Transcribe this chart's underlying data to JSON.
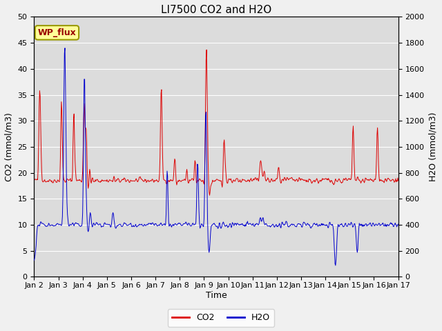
{
  "title": "LI7500 CO2 and H2O",
  "xlabel": "Time",
  "ylabel_left": "CO2 (mmol/m3)",
  "ylabel_right": "H2O (mmol/m3)",
  "ylim_left": [
    0,
    50
  ],
  "ylim_right": [
    0,
    2000
  ],
  "yticks_left": [
    0,
    5,
    10,
    15,
    20,
    25,
    30,
    35,
    40,
    45,
    50
  ],
  "yticks_right": [
    0,
    200,
    400,
    600,
    800,
    1000,
    1200,
    1400,
    1600,
    1800,
    2000
  ],
  "annotation_text": "WP_flux",
  "co2_color": "#dd0000",
  "h2o_color": "#0000cc",
  "fig_bg_color": "#f0f0f0",
  "plot_bg_color": "#dcdcdc",
  "grid_color": "#ffffff",
  "legend_co2": "CO2",
  "legend_h2o": "H2O",
  "title_fontsize": 11,
  "axis_fontsize": 9,
  "tick_fontsize": 8,
  "legend_fontsize": 9
}
